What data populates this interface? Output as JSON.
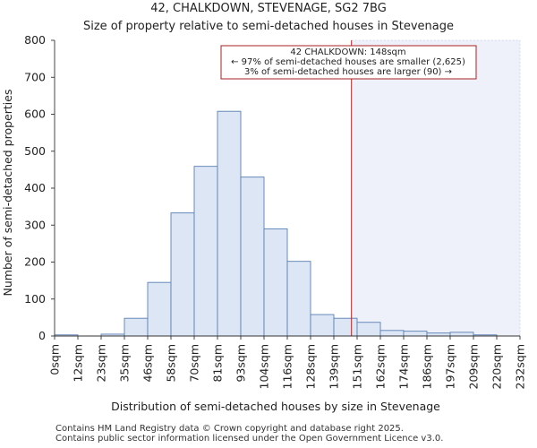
{
  "chart_data": {
    "type": "bar",
    "title": "42, CHALKDOWN, STEVENAGE, SG2 7BG",
    "subtitle": "Size of property relative to semi-detached houses in Stevenage",
    "xlabel": "Distribution of semi-detached houses by size in Stevenage",
    "ylabel": "Number of semi-detached properties",
    "ylim": [
      0,
      800
    ],
    "yticks": [
      0,
      100,
      200,
      300,
      400,
      500,
      600,
      700,
      800
    ],
    "x_tick_labels": [
      "0sqm",
      "12sqm",
      "23sqm",
      "35sqm",
      "46sqm",
      "58sqm",
      "70sqm",
      "81sqm",
      "93sqm",
      "104sqm",
      "116sqm",
      "128sqm",
      "139sqm",
      "151sqm",
      "162sqm",
      "174sqm",
      "186sqm",
      "197sqm",
      "209sqm",
      "220sqm",
      "232sqm"
    ],
    "bin_edges": [
      0,
      11.6,
      23.2,
      34.8,
      46.4,
      58,
      69.6,
      81.2,
      92.8,
      104.4,
      116,
      127.6,
      139.2,
      150.8,
      162.4,
      174,
      185.6,
      197.2,
      208.8,
      220.4,
      232
    ],
    "values": [
      3,
      0,
      5,
      48,
      145,
      333,
      459,
      608,
      430,
      290,
      202,
      58,
      48,
      37,
      15,
      13,
      8,
      10,
      3,
      0
    ],
    "marker_value": 148,
    "annotation": {
      "line1": "42 CHALKDOWN: 148sqm",
      "line2": "← 97% of semi-detached houses are smaller (2,625)",
      "line3": "3% of semi-detached houses are larger (90) →"
    },
    "colors": {
      "bar_fill": "#dce6f5",
      "bar_edge": "#5a7fb3",
      "marker": "#aa2222",
      "highlight": "#eef1fa"
    }
  },
  "footer": {
    "line1": "Contains HM Land Registry data © Crown copyright and database right 2025.",
    "line2": "Contains public sector information licensed under the Open Government Licence v3.0."
  }
}
